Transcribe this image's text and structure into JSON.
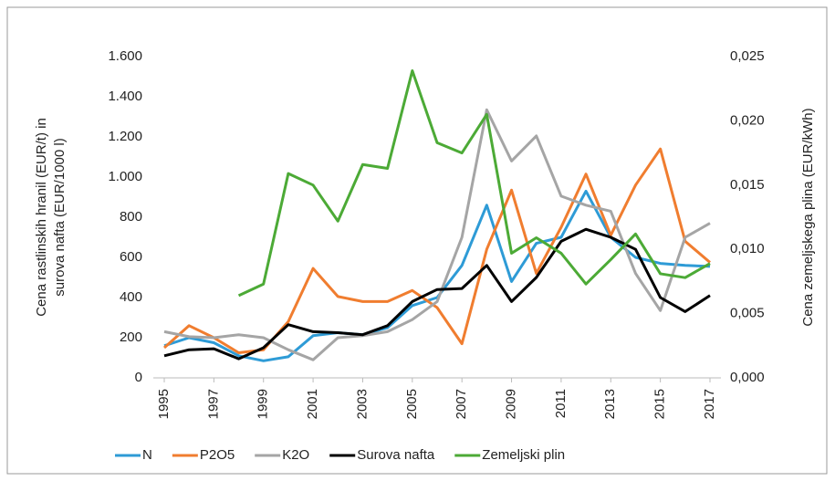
{
  "chart_data": {
    "type": "line",
    "ylabel": [
      "Cena rastlinskih  hranil (EUR/t) in",
      "surova nafta (EUR/1000 l)"
    ],
    "y2label": "Cena zemeljskega  plina (EUR/kWh)",
    "x": [
      1995,
      1996,
      1997,
      1998,
      1999,
      2000,
      2001,
      2002,
      2003,
      2004,
      2005,
      2006,
      2007,
      2008,
      2009,
      2010,
      2011,
      2012,
      2013,
      2014,
      2015,
      2016,
      2017
    ],
    "xlim": [
      1995,
      2017
    ],
    "xticks": [
      1995,
      1997,
      1999,
      2001,
      2003,
      2005,
      2007,
      2009,
      2011,
      2013,
      2015,
      2017
    ],
    "ylim": [
      0,
      1600
    ],
    "yticks": [
      0,
      200,
      400,
      600,
      800,
      {
        "value": 1000,
        "label": "1.000"
      },
      {
        "value": 1200,
        "label": "1.200"
      },
      {
        "value": 1400,
        "label": "1.400"
      },
      {
        "value": 1600,
        "label": "1.600"
      }
    ],
    "y2lim": [
      0,
      0.025
    ],
    "y2ticks": [
      {
        "value": 0,
        "label": "0,000"
      },
      {
        "value": 0.005,
        "label": "0,005"
      },
      {
        "value": 0.01,
        "label": "0,010"
      },
      {
        "value": 0.015,
        "label": "0,015"
      },
      {
        "value": 0.02,
        "label": "0,020"
      },
      {
        "value": 0.025,
        "label": "0,025"
      }
    ],
    "grid": false,
    "legend": "bottom",
    "series": [
      {
        "name": "N",
        "color": "#2e9bd6",
        "values": [
          160,
          200,
          175,
          110,
          85,
          105,
          210,
          225,
          215,
          250,
          360,
          400,
          560,
          860,
          480,
          670,
          700,
          930,
          700,
          600,
          570,
          560,
          555
        ]
      },
      {
        "name": "P2O5",
        "color": "#f07d2f",
        "values": [
          150,
          260,
          200,
          125,
          140,
          280,
          545,
          405,
          380,
          380,
          435,
          350,
          170,
          640,
          935,
          520,
          750,
          1015,
          710,
          960,
          1140,
          680,
          575
        ]
      },
      {
        "name": "K2O",
        "color": "#a5a5a5",
        "values": [
          230,
          205,
          200,
          215,
          200,
          140,
          90,
          200,
          210,
          230,
          290,
          380,
          700,
          1335,
          1080,
          1205,
          905,
          860,
          830,
          520,
          335,
          700,
          770
        ]
      },
      {
        "name": "Surova nafta",
        "color": "#000000",
        "values": [
          110,
          140,
          145,
          95,
          150,
          265,
          230,
          225,
          215,
          260,
          380,
          440,
          445,
          560,
          380,
          500,
          680,
          740,
          700,
          640,
          400,
          330,
          410
        ]
      },
      {
        "name": "Zemeljski plin",
        "color": "#4caa36",
        "axis": "y2",
        "values": [
          null,
          null,
          null,
          0.0064,
          0.0073,
          0.0159,
          0.015,
          0.0122,
          0.0166,
          0.0163,
          0.0239,
          0.0183,
          0.0175,
          0.0205,
          0.0097,
          0.0109,
          0.0097,
          0.0073,
          0.0092,
          0.0112,
          0.0081,
          0.0078,
          0.0089
        ]
      }
    ]
  }
}
